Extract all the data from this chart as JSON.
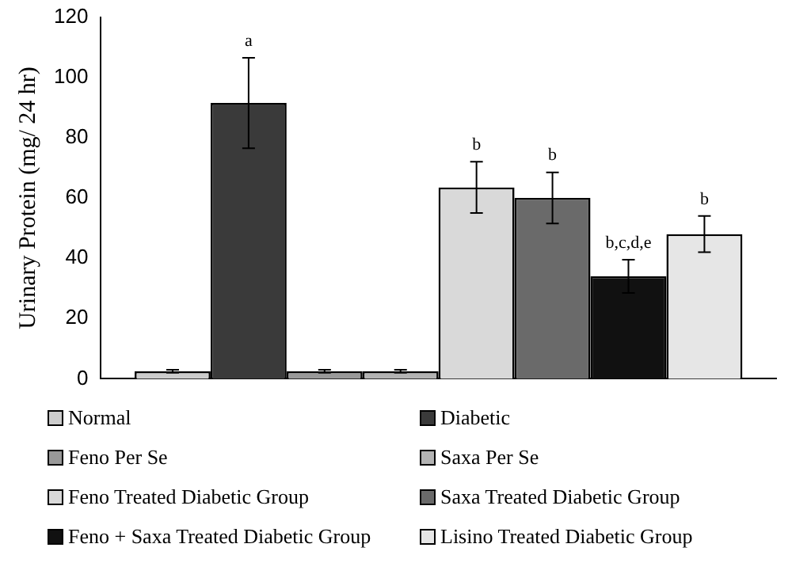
{
  "chart_data": {
    "type": "bar",
    "categories": [
      null
    ],
    "ylabel": "Urinary Protein (mg/ 24 hr)",
    "ylim": [
      0,
      120
    ],
    "yticks": [
      0,
      20,
      40,
      60,
      80,
      100,
      120
    ],
    "grid": false,
    "legend": "bottom",
    "series": [
      {
        "name": "Normal",
        "color": "#cccccc",
        "values": [
          2.5
        ],
        "errors": [
          0.5
        ]
      },
      {
        "name": "Diabetic",
        "color": "#3a3a3a",
        "values": [
          91.5
        ],
        "errors": [
          15
        ]
      },
      {
        "name": "Feno Per Se",
        "color": "#999999",
        "values": [
          2.5
        ],
        "errors": [
          0.5
        ]
      },
      {
        "name": "Saxa Per Se",
        "color": "#b3b3b3",
        "values": [
          2.5
        ],
        "errors": [
          0.5
        ]
      },
      {
        "name": "Feno Treated Diabetic Group",
        "color": "#d9d9d9",
        "values": [
          63.5
        ],
        "errors": [
          8.5
        ]
      },
      {
        "name": "Saxa Treated Diabetic Group",
        "color": "#6a6a6a",
        "values": [
          60
        ],
        "errors": [
          8.5
        ]
      },
      {
        "name": "Feno + Saxa Treated Diabetic Group",
        "color": "#111111",
        "values": [
          34
        ],
        "errors": [
          5.5
        ]
      },
      {
        "name": "Lisino Treated Diabetic Group",
        "color": "#e6e6e6",
        "values": [
          48
        ],
        "errors": [
          6
        ]
      }
    ],
    "annotations": [
      {
        "text": "a",
        "y": 106.5
      },
      {
        "text": "b",
        "y": 72
      },
      {
        "text": "b",
        "y": 68.5
      },
      {
        "text": "b,c,d,e",
        "y": 39.5
      },
      {
        "text": "b",
        "y": 54
      }
    ]
  }
}
